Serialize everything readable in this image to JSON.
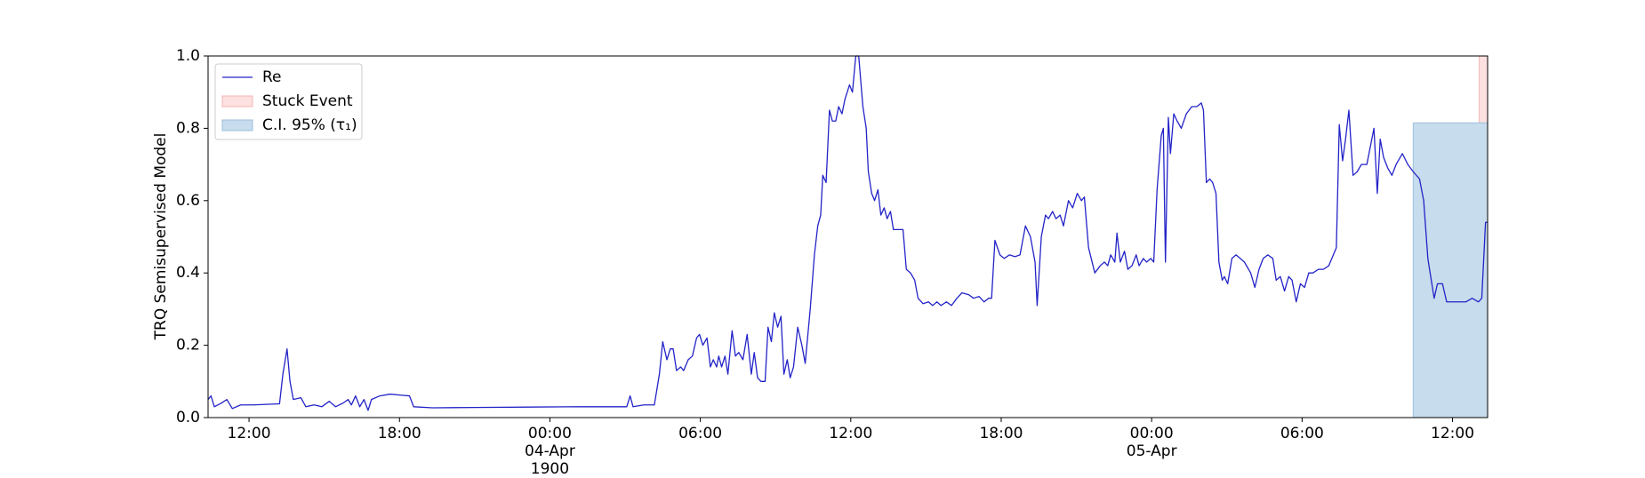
{
  "chart_data": {
    "type": "line",
    "ylabel": "TRQ Semisupervised Model",
    "xlim": [
      "1900-04-03 10:22",
      "1900-04-05 13:24"
    ],
    "ylim": [
      0,
      1
    ],
    "yticks": [
      {
        "value": 0,
        "label": "0.0"
      },
      {
        "value": 0.2,
        "label": "0.2"
      },
      {
        "value": 0.4,
        "label": "0.4"
      },
      {
        "value": 0.6,
        "label": "0.6"
      },
      {
        "value": 0.8,
        "label": "0.8"
      },
      {
        "value": 1,
        "label": "1.0"
      }
    ],
    "xticks": [
      {
        "value": "1900-04-03 12:00",
        "label": "12:00"
      },
      {
        "value": "1900-04-03 18:00",
        "label": "18:00"
      },
      {
        "value": "1900-04-04 00:00",
        "label": "00:00\n04-Apr\n1900"
      },
      {
        "value": "1900-04-04 06:00",
        "label": "06:00"
      },
      {
        "value": "1900-04-04 12:00",
        "label": "12:00"
      },
      {
        "value": "1900-04-04 18:00",
        "label": "18:00"
      },
      {
        "value": "1900-04-05 00:00",
        "label": "00:00\n05-Apr"
      },
      {
        "value": "1900-04-05 06:00",
        "label": "06:00"
      },
      {
        "value": "1900-04-05 12:00",
        "label": "12:00"
      }
    ],
    "grid": false,
    "legend": "upper left",
    "x": [
      "1900-04-03 10:22",
      "1900-04-03 10:29",
      "1900-04-03 10:37",
      "1900-04-03 10:54",
      "1900-04-03 11:07",
      "1900-04-03 11:20",
      "1900-04-03 11:40",
      "1900-04-03 12:10",
      "1900-04-03 13:13",
      "1900-04-03 13:21",
      "1900-04-03 13:31",
      "1900-04-03 13:38",
      "1900-04-03 13:46",
      "1900-04-03 14:04",
      "1900-04-03 14:16",
      "1900-04-03 14:36",
      "1900-04-03 14:54",
      "1900-04-03 15:12",
      "1900-04-03 15:27",
      "1900-04-03 15:45",
      "1900-04-03 15:57",
      "1900-04-03 16:05",
      "1900-04-03 16:15",
      "1900-04-03 16:25",
      "1900-04-03 16:35",
      "1900-04-03 16:45",
      "1900-04-03 16:53",
      "1900-04-03 17:13",
      "1900-04-03 17:38",
      "1900-04-03 18:03",
      "1900-04-03 18:24",
      "1900-04-03 18:34",
      "1900-04-03 19:19",
      "1900-04-03 21:00",
      "1900-04-03 23:06",
      "1900-04-04 01:13",
      "1900-04-04 03:04",
      "1900-04-04 03:12",
      "1900-04-04 03:19",
      "1900-04-04 03:45",
      "1900-04-04 04:10",
      "1900-04-04 04:22",
      "1900-04-04 04:30",
      "1900-04-04 04:40",
      "1900-04-04 04:48",
      "1900-04-04 04:55",
      "1900-04-04 05:03",
      "1900-04-04 05:13",
      "1900-04-04 05:20",
      "1900-04-04 05:31",
      "1900-04-04 05:41",
      "1900-04-04 05:51",
      "1900-04-04 05:58",
      "1900-04-04 06:06",
      "1900-04-04 06:16",
      "1900-04-04 06:24",
      "1900-04-04 06:31",
      "1900-04-04 06:39",
      "1900-04-04 06:44",
      "1900-04-04 06:51",
      "1900-04-04 06:59",
      "1900-04-04 07:06",
      "1900-04-04 07:16",
      "1900-04-04 07:24",
      "1900-04-04 07:32",
      "1900-04-04 07:42",
      "1900-04-04 07:52",
      "1900-04-04 08:02",
      "1900-04-04 08:09",
      "1900-04-04 08:17",
      "1900-04-04 08:25",
      "1900-04-04 08:35",
      "1900-04-04 08:42",
      "1900-04-04 08:50",
      "1900-04-04 08:57",
      "1900-04-04 09:05",
      "1900-04-04 09:13",
      "1900-04-04 09:20",
      "1900-04-04 09:28",
      "1900-04-04 09:35",
      "1900-04-04 09:43",
      "1900-04-04 09:53",
      "1900-04-04 10:03",
      "1900-04-04 10:11",
      "1900-04-04 10:23",
      "1900-04-04 10:33",
      "1900-04-04 10:41",
      "1900-04-04 10:48",
      "1900-04-04 10:53",
      "1900-04-04 11:01",
      "1900-04-04 11:09",
      "1900-04-04 11:16",
      "1900-04-04 11:24",
      "1900-04-04 11:31",
      "1900-04-04 11:39",
      "1900-04-04 11:46",
      "1900-04-04 11:57",
      "1900-04-04 12:04",
      "1900-04-04 12:12",
      "1900-04-04 12:19",
      "1900-04-04 12:29",
      "1900-04-04 12:37",
      "1900-04-04 12:42",
      "1900-04-04 12:50",
      "1900-04-04 12:57",
      "1900-04-04 13:05",
      "1900-04-04 13:12",
      "1900-04-04 13:20",
      "1900-04-04 13:27",
      "1900-04-04 13:35",
      "1900-04-04 13:42",
      "1900-04-04 14:05",
      "1900-04-04 14:13",
      "1900-04-04 14:23",
      "1900-04-04 14:33",
      "1900-04-04 14:41",
      "1900-04-04 14:53",
      "1900-04-04 15:06",
      "1900-04-04 15:16",
      "1900-04-04 15:26",
      "1900-04-04 15:36",
      "1900-04-04 15:49",
      "1900-04-04 16:01",
      "1900-04-04 16:14",
      "1900-04-04 16:26",
      "1900-04-04 16:42",
      "1900-04-04 16:54",
      "1900-04-04 17:07",
      "1900-04-04 17:19",
      "1900-04-04 17:30",
      "1900-04-04 17:37",
      "1900-04-04 17:45",
      "1900-04-04 17:57",
      "1900-04-04 18:07",
      "1900-04-04 18:20",
      "1900-04-04 18:33",
      "1900-04-04 18:45",
      "1900-04-04 18:58",
      "1900-04-04 19:10",
      "1900-04-04 19:21",
      "1900-04-04 19:26",
      "1900-04-04 19:36",
      "1900-04-04 19:46",
      "1900-04-04 19:53",
      "1900-04-04 20:03",
      "1900-04-04 20:11",
      "1900-04-04 20:21",
      "1900-04-04 20:29",
      "1900-04-04 20:41",
      "1900-04-04 20:51",
      "1900-04-04 21:02",
      "1900-04-04 21:12",
      "1900-04-04 21:19",
      "1900-04-04 21:29",
      "1900-04-04 21:44",
      "1900-04-04 21:57",
      "1900-04-04 22:07",
      "1900-04-04 22:15",
      "1900-04-04 22:22",
      "1900-04-04 22:32",
      "1900-04-04 22:37",
      "1900-04-04 22:45",
      "1900-04-04 22:55",
      "1900-04-04 23:03",
      "1900-04-04 23:13",
      "1900-04-04 23:23",
      "1900-04-04 23:30",
      "1900-04-04 23:40",
      "1900-04-04 23:48",
      "1900-04-04 23:58",
      "1900-04-05 00:05",
      "1900-04-05 00:13",
      "1900-04-05 00:23",
      "1900-04-05 00:28",
      "1900-04-05 00:33",
      "1900-04-05 00:40",
      "1900-04-05 00:45",
      "1900-04-05 00:53",
      "1900-04-05 01:01",
      "1900-04-05 01:11",
      "1900-04-05 01:23",
      "1900-04-05 01:36",
      "1900-04-05 01:48",
      "1900-04-05 01:59",
      "1900-04-05 02:04",
      "1900-04-05 02:11",
      "1900-04-05 02:19",
      "1900-04-05 02:26",
      "1900-04-05 02:34",
      "1900-04-05 02:41",
      "1900-04-05 02:49",
      "1900-04-05 02:54",
      "1900-04-05 03:02",
      "1900-04-05 03:12",
      "1900-04-05 03:22",
      "1900-04-05 03:32",
      "1900-04-05 03:42",
      "1900-04-05 03:57",
      "1900-04-05 04:07",
      "1900-04-05 04:17",
      "1900-04-05 04:27",
      "1900-04-05 04:38",
      "1900-04-05 04:50",
      "1900-04-05 04:58",
      "1900-04-05 05:08",
      "1900-04-05 05:18",
      "1900-04-05 05:28",
      "1900-04-05 05:36",
      "1900-04-05 05:46",
      "1900-04-05 05:56",
      "1900-04-05 06:06",
      "1900-04-05 06:16",
      "1900-04-05 06:26",
      "1900-04-05 06:39",
      "1900-04-05 06:51",
      "1900-04-05 07:04",
      "1900-04-05 07:22",
      "1900-04-05 07:29",
      "1900-04-05 07:37",
      "1900-04-05 07:44",
      "1900-04-05 07:52",
      "1900-04-05 08:02",
      "1900-04-05 08:12",
      "1900-04-05 08:22",
      "1900-04-05 08:35",
      "1900-04-05 08:52",
      "1900-04-05 09:00",
      "1900-04-05 09:07",
      "1900-04-05 09:15",
      "1900-04-05 09:25",
      "1900-04-05 09:35",
      "1900-04-05 09:45",
      "1900-04-05 10:00",
      "1900-04-05 10:13",
      "1900-04-05 10:26",
      "1900-04-05 10:41",
      "1900-04-05 10:51",
      "1900-04-05 11:01",
      "1900-04-05 11:16",
      "1900-04-05 11:24",
      "1900-04-05 11:36",
      "1900-04-05 11:46",
      "1900-04-05 12:32",
      "1900-04-05 12:47",
      "1900-04-05 13:02",
      "1900-04-05 13:10",
      "1900-04-05 13:19",
      "1900-04-05 13:24"
    ],
    "series": [
      {
        "name": "Re",
        "color": "#2323c8",
        "values": [
          0.05,
          0.06,
          0.03,
          0.04,
          0.05,
          0.025,
          0.035,
          0.035,
          0.038,
          0.12,
          0.19,
          0.1,
          0.05,
          0.055,
          0.03,
          0.035,
          0.03,
          0.045,
          0.03,
          0.04,
          0.05,
          0.035,
          0.06,
          0.03,
          0.05,
          0.02,
          0.05,
          0.06,
          0.065,
          0.062,
          0.06,
          0.03,
          0.027,
          0.028,
          0.029,
          0.03,
          0.03,
          0.06,
          0.03,
          0.035,
          0.035,
          0.12,
          0.21,
          0.16,
          0.19,
          0.19,
          0.13,
          0.14,
          0.13,
          0.16,
          0.17,
          0.22,
          0.23,
          0.2,
          0.22,
          0.14,
          0.16,
          0.14,
          0.17,
          0.14,
          0.17,
          0.12,
          0.24,
          0.17,
          0.18,
          0.16,
          0.23,
          0.12,
          0.18,
          0.11,
          0.1,
          0.1,
          0.25,
          0.21,
          0.29,
          0.25,
          0.28,
          0.12,
          0.16,
          0.11,
          0.14,
          0.25,
          0.2,
          0.15,
          0.3,
          0.45,
          0.53,
          0.56,
          0.67,
          0.65,
          0.85,
          0.82,
          0.82,
          0.86,
          0.84,
          0.88,
          0.92,
          0.9,
          1.0,
          1.0,
          0.86,
          0.8,
          0.68,
          0.62,
          0.6,
          0.63,
          0.56,
          0.58,
          0.55,
          0.57,
          0.52,
          0.52,
          0.41,
          0.4,
          0.38,
          0.33,
          0.315,
          0.32,
          0.31,
          0.32,
          0.31,
          0.32,
          0.31,
          0.33,
          0.345,
          0.34,
          0.33,
          0.335,
          0.32,
          0.33,
          0.33,
          0.49,
          0.45,
          0.44,
          0.45,
          0.445,
          0.45,
          0.53,
          0.5,
          0.43,
          0.31,
          0.5,
          0.56,
          0.55,
          0.57,
          0.55,
          0.56,
          0.53,
          0.6,
          0.58,
          0.62,
          0.6,
          0.61,
          0.47,
          0.4,
          0.42,
          0.43,
          0.42,
          0.45,
          0.43,
          0.51,
          0.43,
          0.46,
          0.41,
          0.42,
          0.45,
          0.42,
          0.44,
          0.43,
          0.44,
          0.43,
          0.63,
          0.78,
          0.8,
          0.43,
          0.83,
          0.73,
          0.84,
          0.82,
          0.8,
          0.84,
          0.86,
          0.86,
          0.87,
          0.85,
          0.65,
          0.66,
          0.65,
          0.62,
          0.43,
          0.38,
          0.39,
          0.37,
          0.44,
          0.45,
          0.44,
          0.43,
          0.4,
          0.36,
          0.41,
          0.44,
          0.45,
          0.44,
          0.38,
          0.39,
          0.35,
          0.39,
          0.38,
          0.32,
          0.37,
          0.36,
          0.4,
          0.4,
          0.41,
          0.41,
          0.42,
          0.47,
          0.81,
          0.71,
          0.77,
          0.85,
          0.67,
          0.68,
          0.7,
          0.7,
          0.8,
          0.62,
          0.77,
          0.72,
          0.69,
          0.67,
          0.7,
          0.73,
          0.7,
          0.68,
          0.66,
          0.6,
          0.44,
          0.33,
          0.37,
          0.37,
          0.32,
          0.32,
          0.33,
          0.32,
          0.33,
          0.54,
          0.54
        ]
      }
    ],
    "regions": [
      {
        "name": "Stuck Event",
        "color": "#fde0e0",
        "edgecolor": "#f5b5b5",
        "x0": "1900-04-05 13:04",
        "x1": "1900-04-05 13:24"
      },
      {
        "name": "C.I. 95% (τ₁)",
        "color": "#c7dcec",
        "edgecolor": "#9fbfdc",
        "x0": "1900-04-05 10:26",
        "x1": "1900-04-05 13:24",
        "y1": 0.815
      }
    ]
  }
}
